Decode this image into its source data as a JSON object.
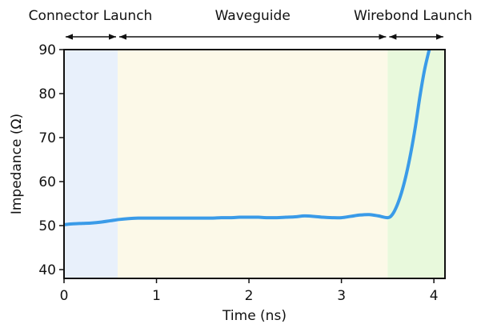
{
  "chart_data": {
    "type": "line",
    "xlabel": "Time (ns)",
    "ylabel": "Impedance (Ω)",
    "xlim": [
      0,
      4.12
    ],
    "ylim": [
      38,
      90
    ],
    "xticks": [
      0,
      1,
      2,
      3,
      4
    ],
    "yticks": [
      40,
      50,
      60,
      70,
      80,
      90
    ],
    "grid": false,
    "regions": [
      {
        "label": "Connector Launch",
        "x_start": 0,
        "x_end": 0.58,
        "color": "#e8f0fb"
      },
      {
        "label": "Waveguide",
        "x_start": 0.58,
        "x_end": 3.5,
        "color": "#fcf9e8"
      },
      {
        "label": "Wirebond Launch",
        "x_start": 3.5,
        "x_end": 4.12,
        "color": "#e8f9dc"
      }
    ],
    "series": [
      {
        "color": "#3a9be8",
        "x": [
          0,
          0.1,
          0.2,
          0.3,
          0.4,
          0.5,
          0.6,
          0.7,
          0.8,
          0.9,
          1.0,
          1.1,
          1.2,
          1.3,
          1.4,
          1.5,
          1.6,
          1.7,
          1.8,
          1.9,
          2.0,
          2.1,
          2.2,
          2.3,
          2.4,
          2.5,
          2.6,
          2.7,
          2.8,
          2.9,
          3.0,
          3.1,
          3.2,
          3.3,
          3.4,
          3.5,
          3.55,
          3.6,
          3.65,
          3.7,
          3.75,
          3.8,
          3.85,
          3.9,
          3.95
        ],
        "y": [
          50.2,
          50.4,
          50.5,
          50.6,
          50.8,
          51.1,
          51.4,
          51.6,
          51.7,
          51.7,
          51.7,
          51.7,
          51.7,
          51.7,
          51.7,
          51.7,
          51.7,
          51.8,
          51.8,
          51.9,
          51.9,
          51.9,
          51.8,
          51.8,
          51.9,
          52.0,
          52.2,
          52.1,
          51.9,
          51.8,
          51.8,
          52.1,
          52.4,
          52.5,
          52.2,
          51.8,
          52.5,
          54.5,
          57.5,
          61.5,
          66.5,
          72.5,
          79.5,
          85.5,
          90.0
        ]
      }
    ]
  }
}
